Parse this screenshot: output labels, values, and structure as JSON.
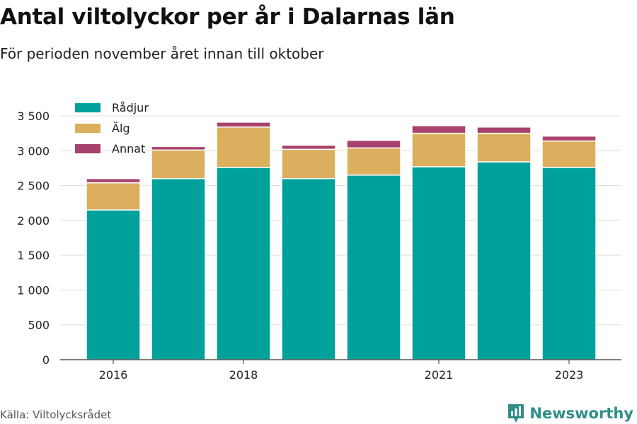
{
  "header": {
    "title": "Antal viltolyckor per år i Dalarnas län",
    "subtitle": "För perioden november året innan till oktober"
  },
  "footer": {
    "source": "Källa: Viltolycksrådet",
    "brand": "Newsworthy",
    "brand_icon": "bar-chart-logo-icon"
  },
  "colors": {
    "Rådjur": "#00a19a",
    "Älg": "#dbaf5e",
    "Annat": "#a8416b",
    "grid": "#dddddd",
    "axis": "#333333"
  },
  "chart_data": {
    "type": "bar",
    "stacked": true,
    "categories": [
      "2016",
      "2017",
      "2018",
      "2019",
      "2020",
      "2021",
      "2022",
      "2023"
    ],
    "x_tick_labels": [
      "2016",
      "",
      "2018",
      "",
      "",
      "2021",
      "",
      "2023"
    ],
    "series": [
      {
        "name": "Rådjur",
        "values": [
          2150,
          2600,
          2760,
          2600,
          2650,
          2770,
          2840,
          2760
        ]
      },
      {
        "name": "Älg",
        "values": [
          390,
          410,
          580,
          420,
          390,
          480,
          410,
          380
        ]
      },
      {
        "name": "Annat",
        "values": [
          60,
          50,
          70,
          60,
          110,
          110,
          90,
          70
        ]
      }
    ],
    "ylim": [
      0,
      3500
    ],
    "y_ticks": [
      0,
      500,
      1000,
      1500,
      2000,
      2500,
      3000,
      3500
    ],
    "y_tick_labels": [
      "0",
      "500",
      "1 000",
      "1 500",
      "2 000",
      "2 500",
      "3 000",
      "3 500"
    ],
    "grid": true,
    "legend_position": "top-left",
    "xlabel": "",
    "ylabel": ""
  }
}
